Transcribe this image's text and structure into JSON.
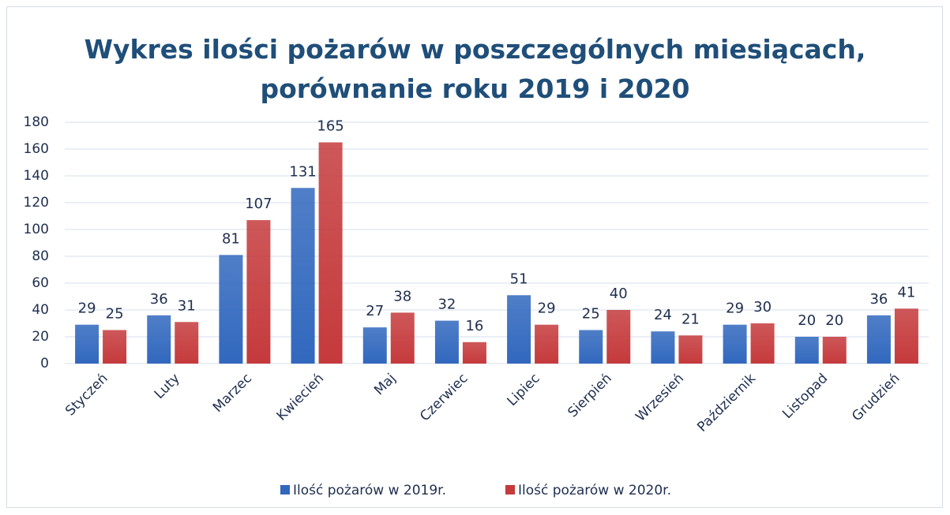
{
  "chart_data": {
    "type": "bar",
    "title": "Wykres ilości pożarów w poszczególnych miesiącach, porównanie roku 2019 i 2020",
    "categories": [
      "Styczeń",
      "Luty",
      "Marzec",
      "Kwiecień",
      "Maj",
      "Czerwiec",
      "Lipiec",
      "Sierpień",
      "Wrzesień",
      "Październik",
      "Listopad",
      "Grudzień"
    ],
    "series": [
      {
        "name": "Ilość pożarów w 2019r.",
        "color": "#3168be",
        "values": [
          29,
          36,
          81,
          131,
          27,
          32,
          51,
          25,
          24,
          29,
          20,
          36
        ]
      },
      {
        "name": "Ilość pożarów w 2020r.",
        "color": "#c53a3c",
        "values": [
          25,
          31,
          107,
          165,
          38,
          16,
          29,
          40,
          21,
          30,
          20,
          41
        ]
      }
    ],
    "ylim": [
      0,
      180
    ],
    "yticks": [
      0,
      20,
      40,
      60,
      80,
      100,
      120,
      140,
      160,
      180
    ],
    "grid": true,
    "legend": "bottom"
  }
}
